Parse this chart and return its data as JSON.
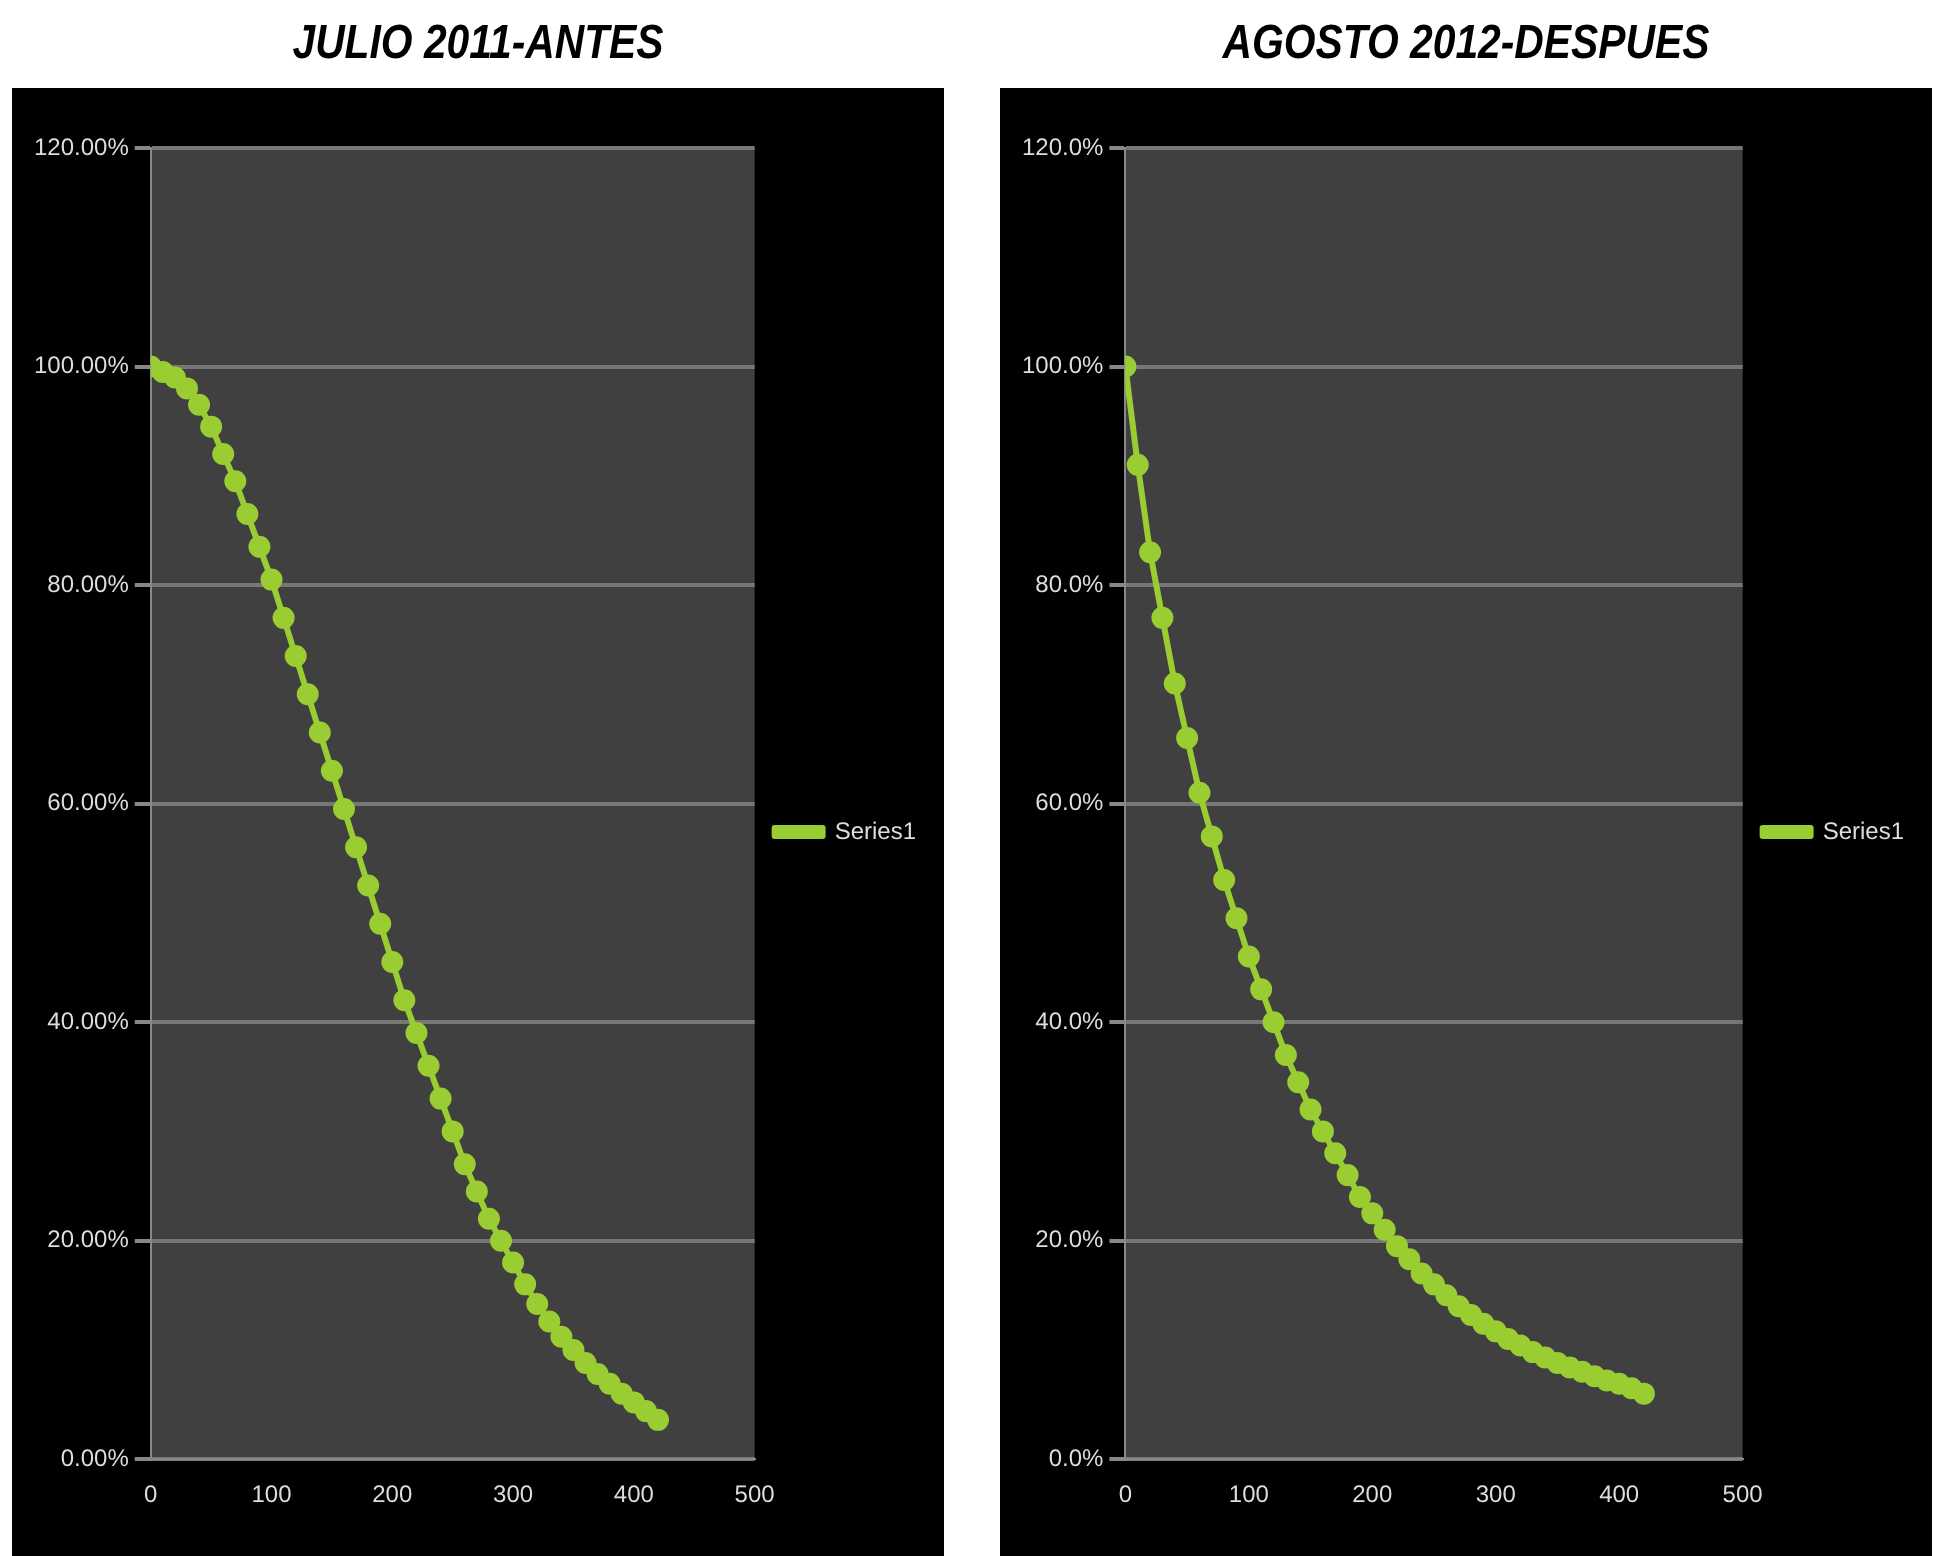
{
  "chart_data": [
    {
      "type": "line",
      "title": "JULIO 2011-ANTES",
      "legend": "right",
      "grid": "y",
      "marker": "circle",
      "x": [
        0,
        10,
        20,
        30,
        40,
        50,
        60,
        70,
        80,
        90,
        100,
        110,
        120,
        130,
        140,
        150,
        160,
        170,
        180,
        190,
        200,
        210,
        220,
        230,
        240,
        250,
        260,
        270,
        280,
        290,
        300,
        310,
        320,
        330,
        340,
        350,
        360,
        370,
        380,
        390,
        400,
        410,
        420
      ],
      "series": [
        {
          "name": "Series1",
          "color": "#9acd32",
          "values": [
            100,
            99.5,
            99,
            98,
            96.5,
            94.5,
            92,
            89.5,
            86.5,
            83.5,
            80.5,
            77,
            73.5,
            70,
            66.5,
            63,
            59.5,
            56,
            52.5,
            49,
            45.5,
            42,
            39,
            36,
            33,
            30,
            27,
            24.5,
            22,
            20,
            18,
            16,
            14.2,
            12.6,
            11.2,
            10,
            8.8,
            7.8,
            6.9,
            6,
            5.2,
            4.4,
            3.6
          ]
        }
      ],
      "xlim": [
        0,
        500
      ],
      "xticks": [
        0,
        100,
        200,
        300,
        400,
        500
      ],
      "ylim": [
        0,
        120
      ],
      "yticks": [
        {
          "value": 0,
          "label": "0.00%"
        },
        {
          "value": 20,
          "label": "20.00%"
        },
        {
          "value": 40,
          "label": "40.00%"
        },
        {
          "value": 60,
          "label": "60.00%"
        },
        {
          "value": 80,
          "label": "80.00%"
        },
        {
          "value": 100,
          "label": "100.00%"
        },
        {
          "value": 120,
          "label": "120.00%"
        }
      ]
    },
    {
      "type": "line",
      "title": "AGOSTO 2012-DESPUES",
      "legend": "right",
      "grid": "y",
      "marker": "circle",
      "x": [
        0,
        10,
        20,
        30,
        40,
        50,
        60,
        70,
        80,
        90,
        100,
        110,
        120,
        130,
        140,
        150,
        160,
        170,
        180,
        190,
        200,
        210,
        220,
        230,
        240,
        250,
        260,
        270,
        280,
        290,
        300,
        310,
        320,
        330,
        340,
        350,
        360,
        370,
        380,
        390,
        400,
        410,
        420
      ],
      "series": [
        {
          "name": "Series1",
          "color": "#9acd32",
          "values": [
            100,
            91,
            83,
            77,
            71,
            66,
            61,
            57,
            53,
            49.5,
            46,
            43,
            40,
            37,
            34.5,
            32,
            30,
            28,
            26,
            24,
            22.5,
            21,
            19.5,
            18.3,
            17,
            16,
            15,
            14,
            13.2,
            12.4,
            11.7,
            11,
            10.4,
            9.8,
            9.3,
            8.8,
            8.4,
            8,
            7.6,
            7.2,
            6.9,
            6.5,
            6
          ]
        }
      ],
      "xlim": [
        0,
        500
      ],
      "xticks": [
        0,
        100,
        200,
        300,
        400,
        500
      ],
      "ylim": [
        0,
        120
      ],
      "yticks": [
        {
          "value": 0,
          "label": "0.0%"
        },
        {
          "value": 20,
          "label": "20.0%"
        },
        {
          "value": 40,
          "label": "40.0%"
        },
        {
          "value": 60,
          "label": "60.0%"
        },
        {
          "value": 80,
          "label": "80.0%"
        },
        {
          "value": 100,
          "label": "100.0%"
        },
        {
          "value": 120,
          "label": "120.0%"
        }
      ]
    }
  ]
}
